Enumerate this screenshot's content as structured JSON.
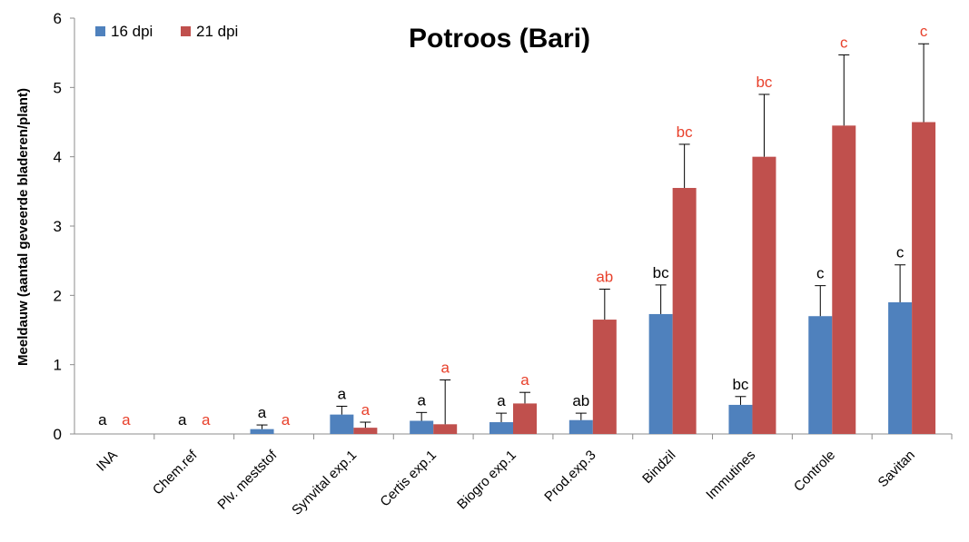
{
  "chart_data": {
    "type": "bar",
    "title": "Potroos (Bari)",
    "ylabel": "Meeldauw (aantal geveerde bladeren/plant)",
    "xlabel": "",
    "ylim": [
      0,
      6
    ],
    "yticks": [
      "0",
      "1",
      "2",
      "3",
      "4",
      "5",
      "6"
    ],
    "legend_position": "top-left",
    "categories": [
      "INA",
      "Chem.ref",
      "Plv. meststof",
      "Synvital exp.1",
      "Certis exp.1",
      "Biogro exp.1",
      "Prod.exp.3",
      "Bindzil",
      "Immutines",
      "Controle",
      "Savitan"
    ],
    "series": [
      {
        "name": "16 dpi",
        "color": "#4f81bd",
        "values": [
          0,
          0,
          0.07,
          0.28,
          0.19,
          0.17,
          0.2,
          1.73,
          0.42,
          1.7,
          1.9
        ],
        "errors": [
          0,
          0,
          0.06,
          0.12,
          0.12,
          0.13,
          0.1,
          0.42,
          0.12,
          0.44,
          0.54
        ],
        "labels": [
          "a",
          "a",
          "a",
          "a",
          "a",
          "a",
          "ab",
          "bc",
          "bc",
          "c",
          "c"
        ],
        "label_color": "#000000"
      },
      {
        "name": "21 dpi",
        "color": "#c0504d",
        "values": [
          0,
          0,
          0,
          0.09,
          0.14,
          0.44,
          1.65,
          3.55,
          4.0,
          4.45,
          4.5
        ],
        "errors": [
          0,
          0,
          0,
          0.08,
          0.64,
          0.16,
          0.44,
          0.63,
          0.9,
          1.02,
          1.13
        ],
        "labels": [
          "a",
          "a",
          "a",
          "a",
          "a",
          "a",
          "ab",
          "bc",
          "bc",
          "c",
          "c"
        ],
        "label_color": "#e8412c"
      }
    ]
  }
}
